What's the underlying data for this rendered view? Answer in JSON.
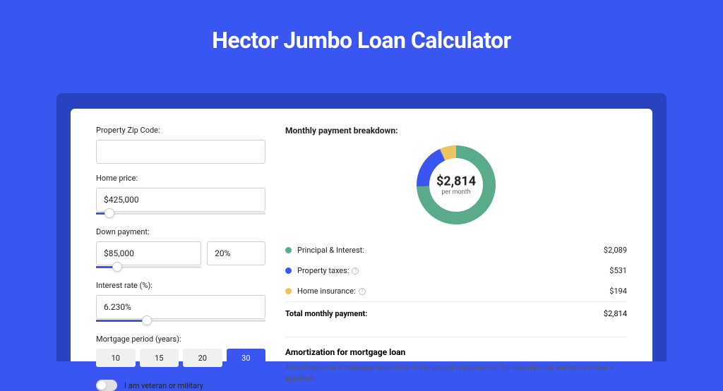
{
  "page": {
    "title": "Hector Jumbo Loan Calculator",
    "background_color": "#3957f0",
    "shadow_color": "#2942bf"
  },
  "form": {
    "zip": {
      "label": "Property Zip Code:",
      "value": ""
    },
    "home_price": {
      "label": "Home price:",
      "value": "$425,000",
      "slider_pct": 8
    },
    "down_payment": {
      "label": "Down payment:",
      "amount": "$85,000",
      "percent": "20%",
      "slider_pct": 20
    },
    "interest_rate": {
      "label": "Interest rate (%):",
      "value": "6.230%",
      "slider_pct": 30
    },
    "mortgage_period": {
      "label": "Mortgage period (years):",
      "options": [
        "10",
        "15",
        "20",
        "30"
      ],
      "selected": "30"
    },
    "veteran": {
      "label": "I am veteran or military",
      "checked": false
    }
  },
  "breakdown": {
    "title": "Monthly payment breakdown:",
    "donut": {
      "amount": "$2,814",
      "sub": "per month",
      "slices": [
        {
          "color": "#5aab8a",
          "pct": 74.2
        },
        {
          "color": "#3957f0",
          "pct": 18.9
        },
        {
          "color": "#eec35f",
          "pct": 6.9
        }
      ],
      "size": 120,
      "thickness": 18
    },
    "items": [
      {
        "dot": "#5aab8a",
        "label": "Principal & Interest:",
        "value": "$2,089",
        "info": false
      },
      {
        "dot": "#3957f0",
        "label": "Property taxes:",
        "value": "$531",
        "info": true
      },
      {
        "dot": "#eec35f",
        "label": "Home insurance:",
        "value": "$194",
        "info": true
      }
    ],
    "total": {
      "label": "Total monthly payment:",
      "value": "$2,814"
    }
  },
  "amortization": {
    "title": "Amortization for mortgage loan",
    "text": "Amortization for a mortgage loan refers to the gradual repayment of the loan principal and interest over a specified"
  }
}
